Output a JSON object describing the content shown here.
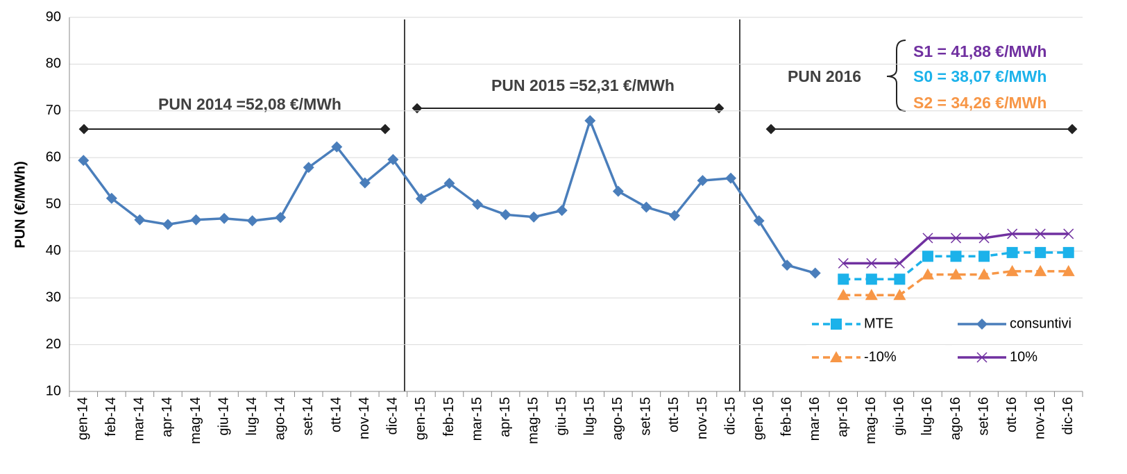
{
  "chart_data": {
    "type": "line",
    "y_label": "PUN (€/MWh)",
    "categories": [
      "gen-14",
      "feb-14",
      "mar-14",
      "apr-14",
      "mag-14",
      "giu-14",
      "lug-14",
      "ago-14",
      "set-14",
      "ott-14",
      "nov-14",
      "dic-14",
      "gen-15",
      "feb-15",
      "mar-15",
      "apr-15",
      "mag-15",
      "giu-15",
      "lug-15",
      "ago-15",
      "set-15",
      "ott-15",
      "nov-15",
      "dic-15",
      "gen-16",
      "feb-16",
      "mar-16",
      "apr-16",
      "mag-16",
      "giu-16",
      "lug-16",
      "ago-16",
      "set-16",
      "ott-16",
      "nov-16",
      "dic-16"
    ],
    "series": [
      {
        "name": "consuntivi",
        "color": "#4a7ebb",
        "marker": "diamond",
        "dashed": false,
        "values": [
          59.4,
          51.3,
          46.7,
          45.7,
          46.7,
          47.0,
          46.5,
          47.2,
          57.9,
          62.3,
          54.6,
          59.6,
          51.2,
          54.5,
          50.0,
          47.8,
          47.3,
          48.7,
          67.9,
          52.8,
          49.4,
          47.6,
          55.1,
          55.6,
          46.5,
          37.0,
          35.3,
          null,
          null,
          null,
          null,
          null,
          null,
          null,
          null,
          null
        ]
      },
      {
        "name": "MTE",
        "color": "#1cb2ea",
        "marker": "square",
        "dashed": true,
        "values": [
          null,
          null,
          null,
          null,
          null,
          null,
          null,
          null,
          null,
          null,
          null,
          null,
          null,
          null,
          null,
          null,
          null,
          null,
          null,
          null,
          null,
          null,
          null,
          null,
          null,
          null,
          null,
          34.0,
          34.0,
          34.0,
          38.9,
          38.9,
          38.9,
          39.7,
          39.7,
          39.7
        ]
      },
      {
        "name": "-10%",
        "color": "#f79646",
        "marker": "triangle",
        "dashed": true,
        "values": [
          null,
          null,
          null,
          null,
          null,
          null,
          null,
          null,
          null,
          null,
          null,
          null,
          null,
          null,
          null,
          null,
          null,
          null,
          null,
          null,
          null,
          null,
          null,
          null,
          null,
          null,
          null,
          30.6,
          30.6,
          30.6,
          35.0,
          35.0,
          35.0,
          35.7,
          35.7,
          35.7
        ]
      },
      {
        "name": "10%",
        "color": "#7030a0",
        "marker": "x",
        "dashed": false,
        "values": [
          null,
          null,
          null,
          null,
          null,
          null,
          null,
          null,
          null,
          null,
          null,
          null,
          null,
          null,
          null,
          null,
          null,
          null,
          null,
          null,
          null,
          null,
          null,
          null,
          null,
          null,
          null,
          37.4,
          37.4,
          37.4,
          42.8,
          42.8,
          42.8,
          43.7,
          43.7,
          43.7
        ]
      }
    ],
    "ylim": [
      10,
      90
    ],
    "yticks": [
      10,
      20,
      30,
      40,
      50,
      60,
      70,
      80,
      90
    ],
    "grid": true,
    "annotations": [
      "PUN 2014 =52,08 €/MWh",
      "PUN 2015 =52,31 €/MWh",
      "PUN 2016",
      "S1 = 41,88 €/MWh",
      "S0 = 38,07 €/MWh",
      "S2 = 34,26 €/MWh"
    ]
  }
}
